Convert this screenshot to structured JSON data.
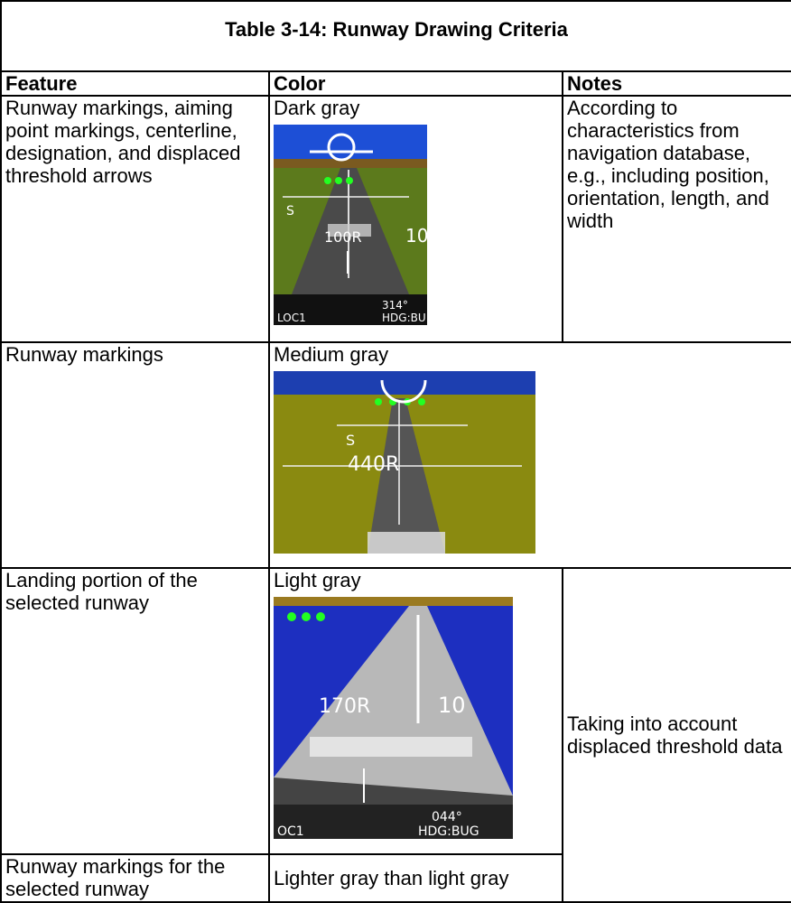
{
  "table": {
    "title": "Table 3-14: Runway Drawing Criteria",
    "header": [
      "Feature",
      "Color",
      "Notes"
    ],
    "rows": [
      {
        "feature": "Runway markings, aiming point markings, centerline, designation, and displaced threshold arrows",
        "color": "Dark gray",
        "notes": "According to characteristics from navigation database, e.g., including position, orientation, length, and width",
        "image_labels": [
          "S",
          "100R",
          "10",
          "314°",
          "HDG:BU",
          "LOC1"
        ]
      },
      {
        "feature": "Runway markings",
        "color": "Medium gray",
        "image_labels": [
          "S",
          "440R"
        ]
      },
      {
        "feature": "Landing portion of the selected runway",
        "color": "Light gray",
        "notes": "Taking into account displaced threshold data",
        "image_labels": [
          "170R",
          "10",
          "044°",
          "HDG:BUG",
          "OC1"
        ]
      },
      {
        "feature": "Runway markings for the selected runway",
        "color": "Lighter gray than light gray"
      }
    ]
  }
}
